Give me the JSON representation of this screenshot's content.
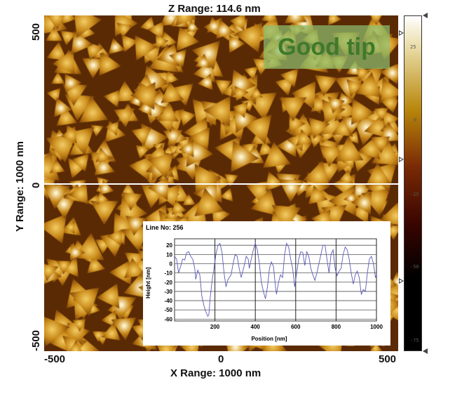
{
  "figure": {
    "z_range_label": "Z Range:  114.6 nm",
    "x_range_label": "X Range: 1000 nm",
    "y_range_label": "Y Range: 1000 nm",
    "x_ticks": [
      "-500",
      "0",
      "500"
    ],
    "y_ticks": [
      "500",
      "0",
      "-500"
    ],
    "annotation": "Good tip",
    "annotation_color": "#3f7a2a",
    "colormap": [
      "#000000",
      "#3a0500",
      "#7a2a05",
      "#b8860b",
      "#e8d9a0",
      "#ffffff"
    ],
    "scan_line_color": "#ffffff"
  },
  "colorbar": {
    "ticks": [
      "25",
      "0",
      "-25",
      "-50",
      "-75"
    ],
    "tick_values": [
      25,
      0,
      -25,
      -50,
      -75
    ],
    "range": [
      -78.6,
      36
    ]
  },
  "chart_data": {
    "type": "line",
    "title": "Line No: 256",
    "xlabel": "Position [nm]",
    "ylabel": "Height [nm]",
    "xlim": [
      0,
      1000
    ],
    "ylim": [
      -62,
      27
    ],
    "grid": true,
    "x_ticks": [
      200,
      400,
      600,
      800,
      1000
    ],
    "y_ticks": [
      20,
      10,
      0,
      -10,
      -20,
      -30,
      -40,
      -50,
      -60
    ],
    "line_color": "#5a5ab8",
    "series": [
      {
        "x": [
          0,
          10,
          20,
          30,
          40,
          50,
          60,
          70,
          80,
          90,
          100,
          105,
          115,
          125,
          135,
          145,
          155,
          165,
          170,
          175,
          185,
          195,
          205,
          215,
          225,
          235,
          245,
          255,
          265,
          280,
          290,
          300,
          310,
          320,
          330,
          345,
          355,
          365,
          370,
          380,
          390,
          400,
          410,
          420,
          430,
          440,
          450,
          460,
          470,
          480,
          490,
          500,
          505,
          515,
          525,
          535,
          545,
          555,
          565,
          575,
          585,
          595,
          605,
          615,
          625,
          635,
          645,
          655,
          665,
          675,
          685,
          695,
          705,
          715,
          725,
          735,
          745,
          755,
          765,
          775,
          785,
          795,
          805,
          815,
          825,
          835,
          845,
          855,
          865,
          875,
          885,
          895,
          905,
          915,
          925,
          935,
          945,
          955,
          965,
          975,
          985,
          995,
          1000
        ],
        "y": [
          8,
          5,
          -10,
          -3,
          5,
          4,
          12,
          13,
          8,
          5,
          -5,
          -17,
          -7,
          -12,
          -35,
          -45,
          -52,
          -57,
          -55,
          -40,
          -20,
          -5,
          10,
          20,
          22,
          12,
          -10,
          -25,
          -17,
          -12,
          0,
          10,
          8,
          -5,
          -15,
          -2,
          8,
          5,
          -5,
          5,
          15,
          22,
          15,
          0,
          -20,
          -30,
          -38,
          -25,
          -5,
          2,
          -3,
          -25,
          -33,
          -20,
          -12,
          -15,
          10,
          22,
          18,
          5,
          -5,
          -25,
          -10,
          5,
          13,
          12,
          -2,
          13,
          8,
          -5,
          -12,
          -18,
          -10,
          0,
          10,
          20,
          20,
          5,
          -10,
          10,
          15,
          -5,
          -13,
          -8,
          -5,
          10,
          18,
          15,
          5,
          -10,
          -22,
          -12,
          -8,
          -15,
          -33,
          -28,
          -30,
          -10,
          5,
          8,
          0,
          -15,
          -12
        ]
      }
    ]
  }
}
